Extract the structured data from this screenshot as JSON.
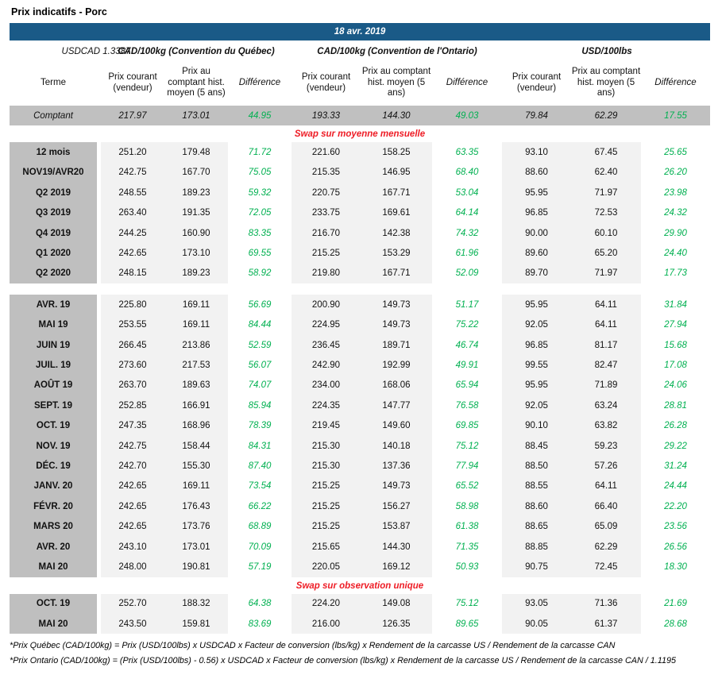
{
  "page_title": "Prix indicatifs - Porc",
  "date_banner": "18 avr. 2019",
  "fx_label": "USDCAD 1.3387",
  "group_headers": [
    "CAD/100kg (Convention du Québec)",
    "CAD/100kg (Convention de l'Ontario)",
    "USD/100lbs"
  ],
  "column_headers": {
    "term": "Terme",
    "current": "Prix courant (vendeur)",
    "historical": "Prix au comptant hist. moyen (5 ans)",
    "difference": "Différence"
  },
  "colors": {
    "banner_blue": "#1a5a87",
    "label_gray": "#bfbfbf",
    "spot_row_gray": "#c0c0c0",
    "price_block_gray": "#f2f2f2",
    "difference_green": "#00b050",
    "section_title_red": "#ee1c25"
  },
  "spot_row": {
    "label": "Comptant",
    "values": [
      "217.97",
      "173.01",
      "44.95",
      "193.33",
      "144.30",
      "49.03",
      "79.84",
      "62.29",
      "17.55"
    ]
  },
  "sections": {
    "monthly_swap": {
      "title": "Swap sur moyenne mensuelle",
      "rows": [
        {
          "label": "12 mois",
          "values": [
            "251.20",
            "179.48",
            "71.72",
            "221.60",
            "158.25",
            "63.35",
            "93.10",
            "67.45",
            "25.65"
          ]
        },
        {
          "label": "NOV19/AVR20",
          "values": [
            "242.75",
            "167.70",
            "75.05",
            "215.35",
            "146.95",
            "68.40",
            "88.60",
            "62.40",
            "26.20"
          ]
        },
        {
          "label": "Q2 2019",
          "values": [
            "248.55",
            "189.23",
            "59.32",
            "220.75",
            "167.71",
            "53.04",
            "95.95",
            "71.97",
            "23.98"
          ]
        },
        {
          "label": "Q3 2019",
          "values": [
            "263.40",
            "191.35",
            "72.05",
            "233.75",
            "169.61",
            "64.14",
            "96.85",
            "72.53",
            "24.32"
          ]
        },
        {
          "label": "Q4 2019",
          "values": [
            "244.25",
            "160.90",
            "83.35",
            "216.70",
            "142.38",
            "74.32",
            "90.00",
            "60.10",
            "29.90"
          ]
        },
        {
          "label": "Q1 2020",
          "values": [
            "242.65",
            "173.10",
            "69.55",
            "215.25",
            "153.29",
            "61.96",
            "89.60",
            "65.20",
            "24.40"
          ]
        },
        {
          "label": "Q2 2020",
          "values": [
            "248.15",
            "189.23",
            "58.92",
            "219.80",
            "167.71",
            "52.09",
            "89.70",
            "71.97",
            "17.73"
          ]
        }
      ]
    },
    "months": {
      "rows": [
        {
          "label": "AVR. 19",
          "values": [
            "225.80",
            "169.11",
            "56.69",
            "200.90",
            "149.73",
            "51.17",
            "95.95",
            "64.11",
            "31.84"
          ]
        },
        {
          "label": "MAI 19",
          "values": [
            "253.55",
            "169.11",
            "84.44",
            "224.95",
            "149.73",
            "75.22",
            "92.05",
            "64.11",
            "27.94"
          ]
        },
        {
          "label": "JUIN 19",
          "values": [
            "266.45",
            "213.86",
            "52.59",
            "236.45",
            "189.71",
            "46.74",
            "96.85",
            "81.17",
            "15.68"
          ]
        },
        {
          "label": "JUIL. 19",
          "values": [
            "273.60",
            "217.53",
            "56.07",
            "242.90",
            "192.99",
            "49.91",
            "99.55",
            "82.47",
            "17.08"
          ]
        },
        {
          "label": "AOÛT 19",
          "values": [
            "263.70",
            "189.63",
            "74.07",
            "234.00",
            "168.06",
            "65.94",
            "95.95",
            "71.89",
            "24.06"
          ]
        },
        {
          "label": "SEPT. 19",
          "values": [
            "252.85",
            "166.91",
            "85.94",
            "224.35",
            "147.77",
            "76.58",
            "92.05",
            "63.24",
            "28.81"
          ]
        },
        {
          "label": "OCT. 19",
          "values": [
            "247.35",
            "168.96",
            "78.39",
            "219.45",
            "149.60",
            "69.85",
            "90.10",
            "63.82",
            "26.28"
          ]
        },
        {
          "label": "NOV. 19",
          "values": [
            "242.75",
            "158.44",
            "84.31",
            "215.30",
            "140.18",
            "75.12",
            "88.45",
            "59.23",
            "29.22"
          ]
        },
        {
          "label": "DÉC. 19",
          "values": [
            "242.70",
            "155.30",
            "87.40",
            "215.30",
            "137.36",
            "77.94",
            "88.50",
            "57.26",
            "31.24"
          ]
        },
        {
          "label": "JANV. 20",
          "values": [
            "242.65",
            "169.11",
            "73.54",
            "215.25",
            "149.73",
            "65.52",
            "88.55",
            "64.11",
            "24.44"
          ]
        },
        {
          "label": "FÉVR. 20",
          "values": [
            "242.65",
            "176.43",
            "66.22",
            "215.25",
            "156.27",
            "58.98",
            "88.60",
            "66.40",
            "22.20"
          ]
        },
        {
          "label": "MARS 20",
          "values": [
            "242.65",
            "173.76",
            "68.89",
            "215.25",
            "153.87",
            "61.38",
            "88.65",
            "65.09",
            "23.56"
          ]
        },
        {
          "label": "AVR. 20",
          "values": [
            "243.10",
            "173.01",
            "70.09",
            "215.65",
            "144.30",
            "71.35",
            "88.85",
            "62.29",
            "26.56"
          ]
        },
        {
          "label": "MAI 20",
          "values": [
            "248.00",
            "190.81",
            "57.19",
            "220.05",
            "169.12",
            "50.93",
            "90.75",
            "72.45",
            "18.30"
          ]
        }
      ]
    },
    "unique_swap": {
      "title": "Swap sur observation unique",
      "rows": [
        {
          "label": "OCT. 19",
          "values": [
            "252.70",
            "188.32",
            "64.38",
            "224.20",
            "149.08",
            "75.12",
            "93.05",
            "71.36",
            "21.69"
          ]
        },
        {
          "label": "MAI 20",
          "values": [
            "243.50",
            "159.81",
            "83.69",
            "216.00",
            "126.35",
            "89.65",
            "90.05",
            "61.37",
            "28.68"
          ]
        }
      ]
    }
  },
  "footnotes": [
    "*Prix Québec (CAD/100kg) = Prix (USD/100lbs) x USDCAD x Facteur de conversion (lbs/kg) x Rendement de la carcasse US / Rendement de la carcasse CAN",
    "*Prix Ontario (CAD/100kg) = (Prix (USD/100lbs) - 0.56) x USDCAD x Facteur de conversion (lbs/kg) x Rendement de la carcasse US / Rendement de la carcasse CAN / 1.1195"
  ]
}
